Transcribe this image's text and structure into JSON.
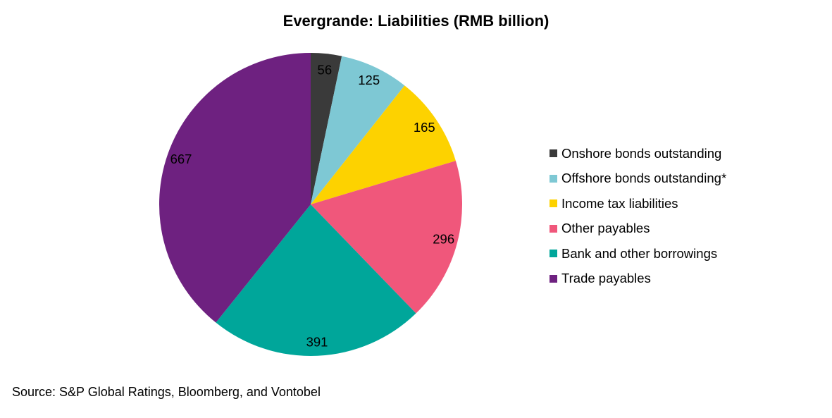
{
  "chart_data": {
    "type": "pie",
    "title": "Evergrande: Liabilities (RMB billion)",
    "slices": [
      {
        "label": "Onshore bonds outstanding",
        "value": 56,
        "color": "#3a3a3a"
      },
      {
        "label": "Offshore bonds outstanding*",
        "value": 125,
        "color": "#7ec8d4"
      },
      {
        "label": "Income tax liabilities",
        "value": 165,
        "color": "#fdd200"
      },
      {
        "label": "Other payables",
        "value": 296,
        "color": "#f0577b"
      },
      {
        "label": "Bank and other borrowings",
        "value": 391,
        "color": "#00a69a"
      },
      {
        "label": "Trade payables",
        "value": 667,
        "color": "#6e2180"
      }
    ],
    "start": "12 o'clock",
    "direction": "clockwise",
    "legend_position": "right"
  },
  "source": "Source: S&P Global Ratings, Bloomberg, and Vontobel"
}
